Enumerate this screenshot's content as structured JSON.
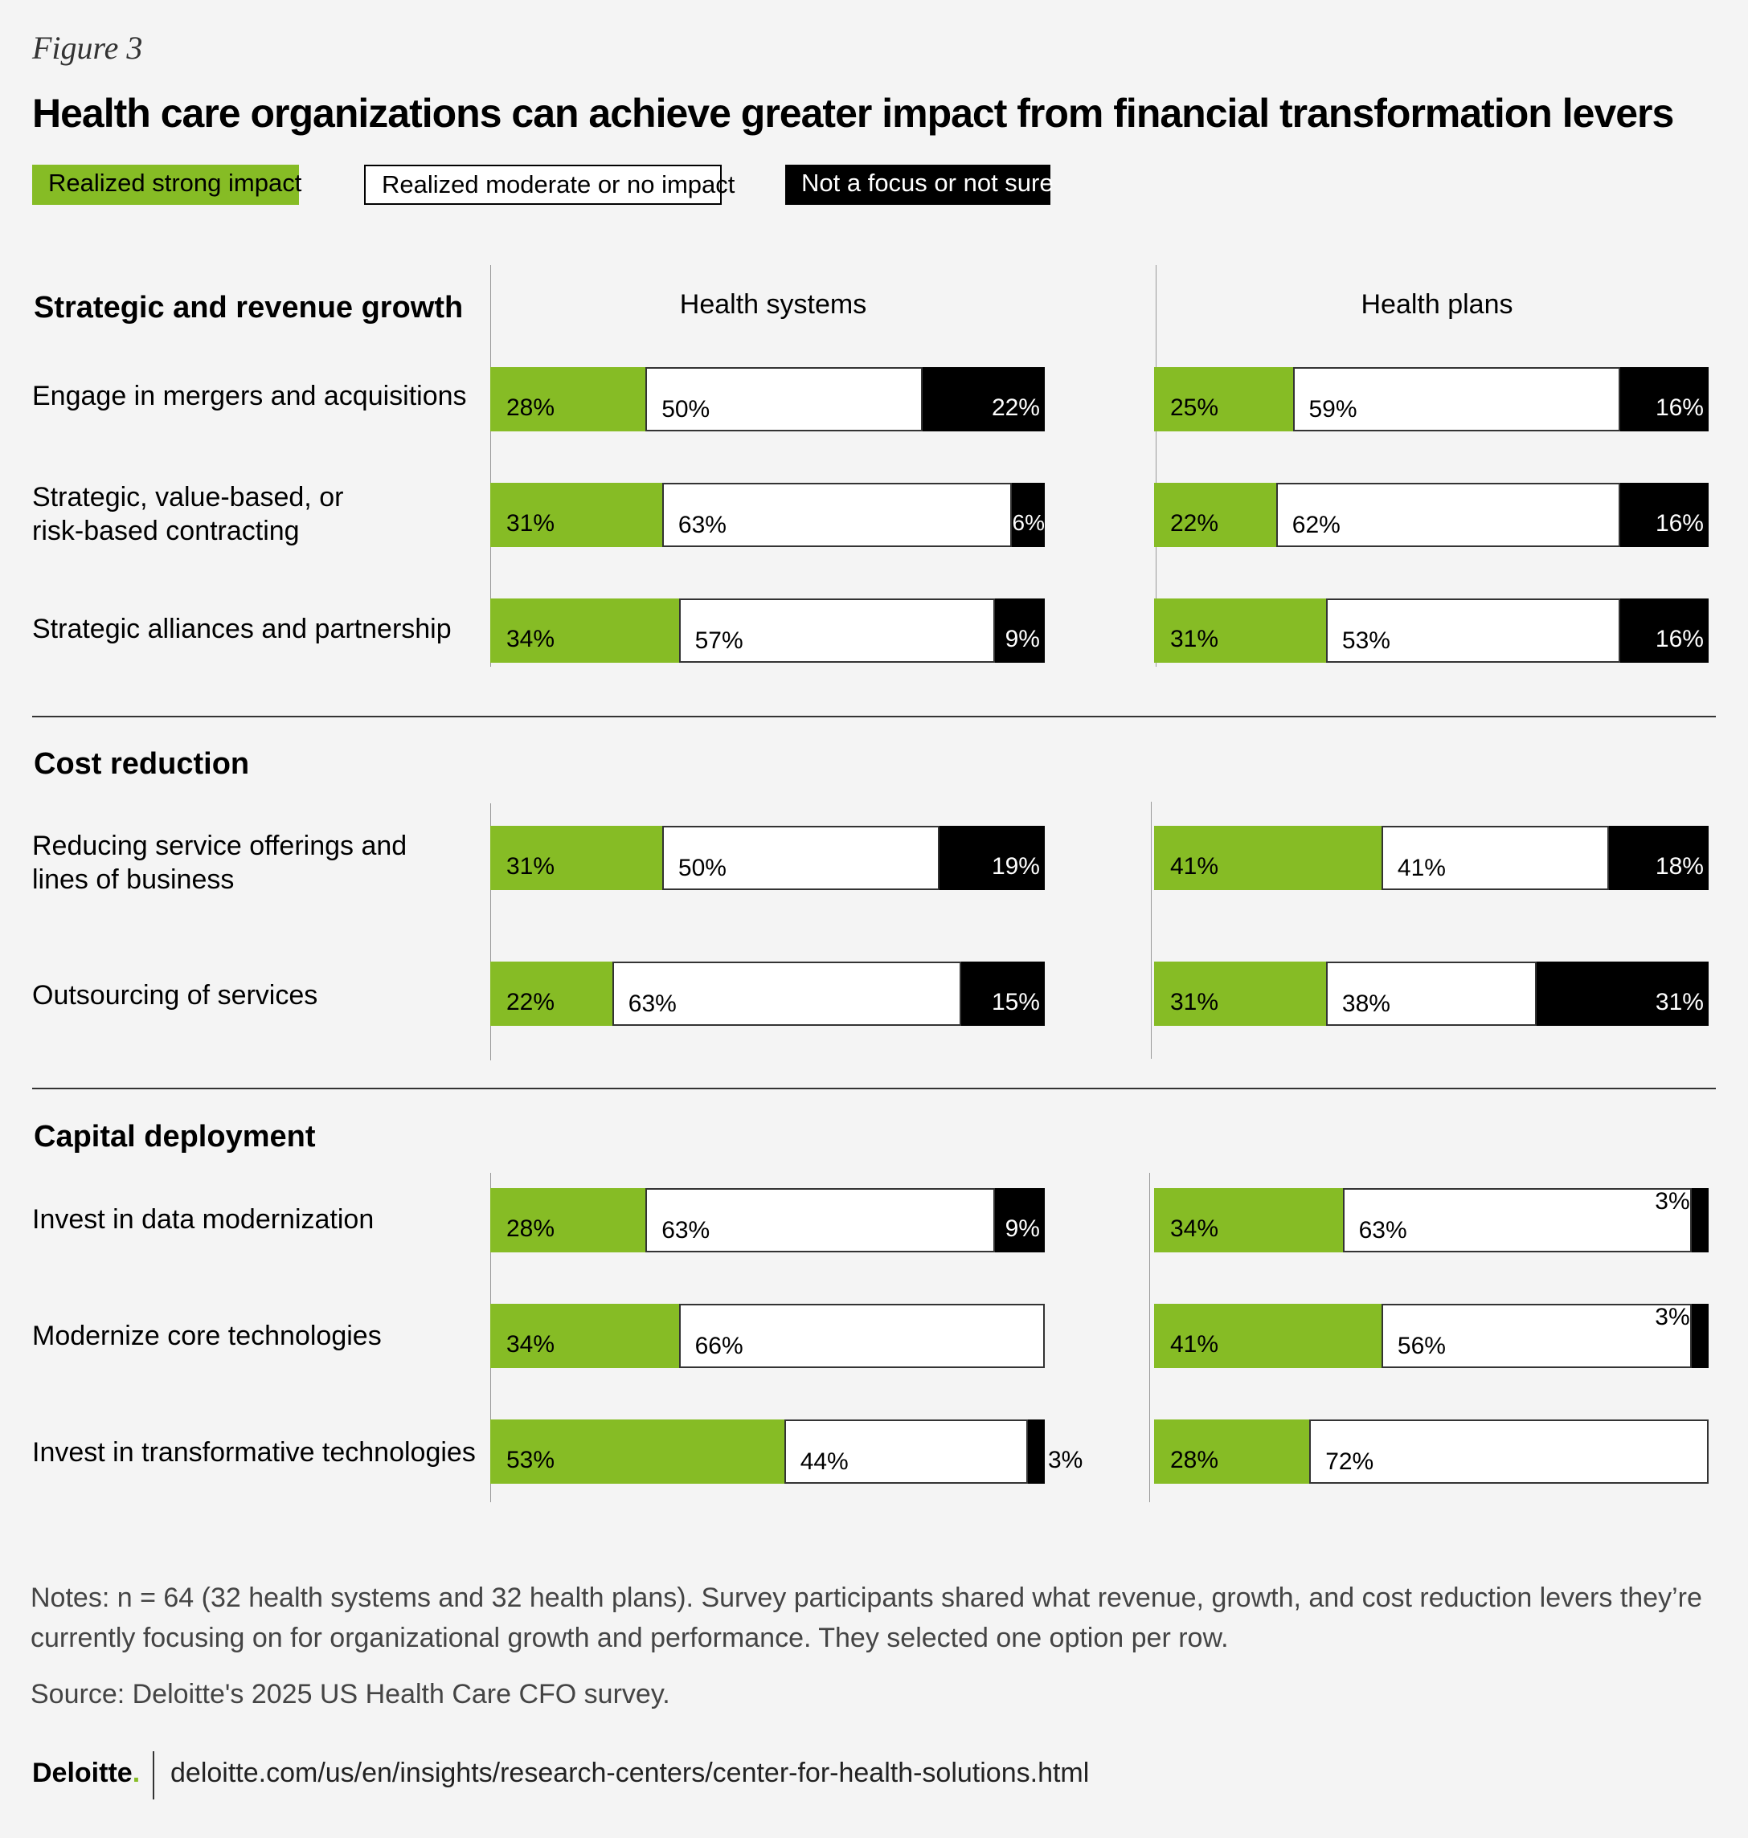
{
  "figure_label": "Figure 3",
  "title": "Health care organizations can achieve greater impact from financial transformation levers",
  "legend": {
    "strong": "Realized strong impact",
    "moderate": "Realized moderate or no impact",
    "notfocus": "Not a focus or not sure"
  },
  "colors": {
    "strong": "#86bc25",
    "moderate": "#ffffff",
    "notfocus": "#000000"
  },
  "panels": {
    "left": "Health systems",
    "right": "Health plans"
  },
  "sections": [
    {
      "title": "Strategic and revenue growth",
      "rows": [
        {
          "label": "Engage in mergers and acquisitions"
        },
        {
          "label": "Strategic, value-based, or risk-based contracting"
        },
        {
          "label": "Strategic alliances and partnership"
        }
      ]
    },
    {
      "title": "Cost reduction",
      "rows": [
        {
          "label": "Reducing service offerings and lines of business"
        },
        {
          "label": "Outsourcing of services"
        }
      ]
    },
    {
      "title": "Capital deployment",
      "rows": [
        {
          "label": "Invest in data modernization"
        },
        {
          "label": "Modernize core technologies"
        },
        {
          "label": "Invest in transformative technologies"
        }
      ]
    }
  ],
  "chart_data": {
    "type": "bar",
    "stacked": true,
    "orientation": "horizontal",
    "categories": [
      "Engage in mergers and acquisitions",
      "Strategic, value-based, or risk-based contracting",
      "Strategic alliances and partnership",
      "Reducing service offerings and lines of business",
      "Outsourcing of services",
      "Invest in data modernization",
      "Modernize core technologies",
      "Invest in transformative technologies"
    ],
    "panels": [
      {
        "name": "Health systems",
        "series": [
          {
            "name": "Realized strong impact",
            "values": [
              28,
              31,
              34,
              31,
              22,
              28,
              34,
              53
            ]
          },
          {
            "name": "Realized moderate or no impact",
            "values": [
              50,
              63,
              57,
              50,
              63,
              63,
              66,
              44
            ]
          },
          {
            "name": "Not a focus or not sure",
            "values": [
              22,
              6,
              9,
              19,
              15,
              9,
              0,
              3
            ]
          }
        ]
      },
      {
        "name": "Health plans",
        "series": [
          {
            "name": "Realized strong impact",
            "values": [
              25,
              22,
              31,
              41,
              31,
              34,
              41,
              28
            ]
          },
          {
            "name": "Realized moderate or no impact",
            "values": [
              59,
              62,
              53,
              41,
              38,
              63,
              56,
              72
            ]
          },
          {
            "name": "Not a focus or not sure",
            "values": [
              16,
              16,
              16,
              18,
              31,
              3,
              3,
              0
            ]
          }
        ]
      }
    ],
    "unit": "%"
  },
  "notes": "Notes: n = 64 (32 health systems and 32 health plans). Survey participants shared what revenue, growth, and cost reduction levers they’re currently focusing on for organizational growth and performance. They selected one option per row.",
  "source": "Source: Deloitte's 2025 US Health Care CFO survey.",
  "brand": "Deloitte",
  "url": "deloitte.com/us/en/insights/research-centers/center-for-health-solutions.html"
}
